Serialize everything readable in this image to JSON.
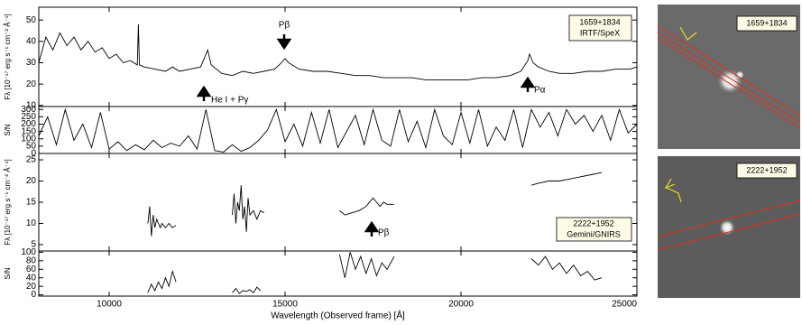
{
  "chart_data": [
    {
      "type": "line",
      "ylabel": "Fλ [10⁻¹⁷ erg s⁻¹ cm⁻² Å⁻¹]",
      "xlim": [
        8000,
        25000
      ],
      "ylim": [
        9.5,
        56
      ],
      "yticks": [
        10,
        20,
        30,
        40,
        50
      ],
      "color": "#000000",
      "annotations": [
        "Pβ",
        "He I + Pγ",
        "Pα"
      ],
      "label_box": [
        "1659+1834",
        "IRTF/SpeX"
      ],
      "x": [
        8000,
        8200,
        8400,
        8600,
        8800,
        9000,
        9200,
        9400,
        9600,
        9800,
        10000,
        10200,
        10400,
        10600,
        10800,
        10830,
        10860,
        11000,
        11300,
        11600,
        11800,
        12000,
        12300,
        12600,
        12800,
        12900,
        13200,
        13500,
        13800,
        14100,
        14400,
        14700,
        14900,
        15000,
        15100,
        15400,
        15800,
        16200,
        16600,
        17000,
        17400,
        17800,
        18200,
        18600,
        19000,
        19400,
        19800,
        20200,
        20600,
        21000,
        21400,
        21700,
        21900,
        21950,
        22050,
        22200,
        22500,
        22800,
        23200,
        23600,
        24000,
        24400,
        24800,
        25000
      ],
      "values": [
        30,
        42,
        36,
        44,
        38,
        42,
        36,
        40,
        35,
        37,
        32,
        34,
        30,
        31,
        29,
        48,
        29,
        28,
        27,
        26,
        28,
        26,
        27,
        28,
        36,
        29,
        25,
        24,
        26,
        25,
        26,
        27,
        30,
        32,
        30,
        27,
        26,
        26,
        25,
        24,
        24,
        23,
        23,
        23,
        22,
        22,
        22,
        22,
        23,
        23,
        24,
        26,
        31,
        34,
        30,
        28,
        26,
        25,
        25,
        26,
        26,
        27,
        27,
        28
      ]
    },
    {
      "type": "line",
      "ylabel": "S/N",
      "xlim": [
        8000,
        25000
      ],
      "ylim": [
        0,
        320
      ],
      "yticks": [
        0,
        50,
        100,
        150,
        200,
        250,
        300
      ],
      "color": "#000000",
      "x": [
        8000,
        8250,
        8500,
        8750,
        9000,
        9250,
        9500,
        9750,
        10000,
        10250,
        10500,
        10750,
        11000,
        11250,
        11500,
        11750,
        12000,
        12250,
        12500,
        12750,
        13000,
        13250,
        13500,
        13750,
        14000,
        14250,
        14500,
        14750,
        15000,
        15250,
        15500,
        15750,
        16000,
        16250,
        16500,
        16750,
        17000,
        17250,
        17500,
        17750,
        18000,
        18250,
        18500,
        18750,
        19000,
        19250,
        19500,
        19750,
        20000,
        20250,
        20500,
        20750,
        21000,
        21250,
        21500,
        21750,
        22000,
        22250,
        22500,
        22750,
        23000,
        23250,
        23500,
        23750,
        24000,
        24250,
        24500,
        24750,
        25000
      ],
      "values": [
        120,
        250,
        60,
        300,
        90,
        200,
        40,
        280,
        30,
        80,
        20,
        60,
        25,
        90,
        40,
        70,
        50,
        120,
        30,
        300,
        20,
        10,
        60,
        15,
        40,
        90,
        160,
        300,
        80,
        200,
        50,
        280,
        70,
        300,
        40,
        150,
        260,
        60,
        300,
        90,
        50,
        300,
        80,
        220,
        40,
        300,
        120,
        60,
        280,
        70,
        300,
        50,
        180,
        90,
        300,
        40,
        300,
        180,
        280,
        120,
        300,
        200,
        260,
        150,
        260,
        90,
        300,
        140,
        200
      ]
    },
    {
      "type": "line",
      "ylabel": "Fλ [10⁻¹⁷ erg s⁻¹ cm⁻² Å⁻¹]",
      "xlim": [
        8000,
        25000
      ],
      "ylim": [
        3.5,
        26.5
      ],
      "yticks": [
        5,
        10,
        15,
        20,
        25
      ],
      "color": "#000000",
      "annotations": [
        "Pβ"
      ],
      "label_box": [
        "2222+1952",
        "Gemini/GNIRS"
      ],
      "x": [
        11100,
        11150,
        11200,
        11250,
        11300,
        11350,
        11400,
        11450,
        11500,
        11600,
        11700,
        11800,
        11900,
        12000,
        13500,
        13550,
        13600,
        13650,
        13700,
        13750,
        13800,
        13850,
        13900,
        13950,
        14000,
        14100,
        14200,
        14300,
        14400,
        15000,
        16550,
        16700,
        16900,
        17100,
        17300,
        17500,
        17600,
        17700,
        17800,
        17900,
        18100,
        20000,
        22000,
        22200,
        22500,
        22800,
        23100,
        23400,
        23700,
        24000
      ],
      "values": [
        10,
        14,
        7,
        12,
        9,
        11,
        10,
        9,
        10,
        9,
        10,
        9,
        9.5,
        null,
        12,
        17,
        10,
        15,
        13,
        19,
        11,
        14,
        8,
        16,
        12,
        13,
        11,
        13,
        12.5,
        null,
        13,
        12,
        12.5,
        13,
        14,
        16,
        15,
        14,
        15,
        14.5,
        14.5,
        null,
        19,
        19.5,
        20,
        20,
        20.5,
        21,
        21.5,
        22
      ]
    },
    {
      "type": "line",
      "ylabel": "S/N",
      "xlabel": "Wavelength (Observed frame) [Å]",
      "xlim": [
        8000,
        25000
      ],
      "ylim": [
        -3,
        103
      ],
      "yticks": [
        0,
        20,
        40,
        60,
        80,
        100
      ],
      "xticks": [
        10000,
        15000,
        20000,
        25000
      ],
      "color": "#000000",
      "x": [
        11100,
        11200,
        11300,
        11400,
        11500,
        11600,
        11700,
        11800,
        11900,
        12000,
        13500,
        13600,
        13700,
        13800,
        13900,
        14000,
        14100,
        14200,
        14300,
        15000,
        16550,
        16700,
        16850,
        17000,
        17150,
        17300,
        17450,
        17600,
        17750,
        17900,
        18100,
        20000,
        22000,
        22200,
        22400,
        22600,
        22800,
        23000,
        23200,
        23400,
        23600,
        23800,
        24000
      ],
      "values": [
        5,
        25,
        10,
        30,
        15,
        40,
        20,
        55,
        30,
        null,
        5,
        15,
        3,
        10,
        8,
        12,
        5,
        18,
        10,
        null,
        95,
        40,
        100,
        60,
        90,
        50,
        85,
        45,
        75,
        60,
        90,
        null,
        85,
        70,
        90,
        60,
        75,
        50,
        70,
        45,
        55,
        35,
        40
      ]
    }
  ],
  "images": [
    {
      "label": "1659+1834"
    },
    {
      "label": "2222+1952"
    }
  ]
}
